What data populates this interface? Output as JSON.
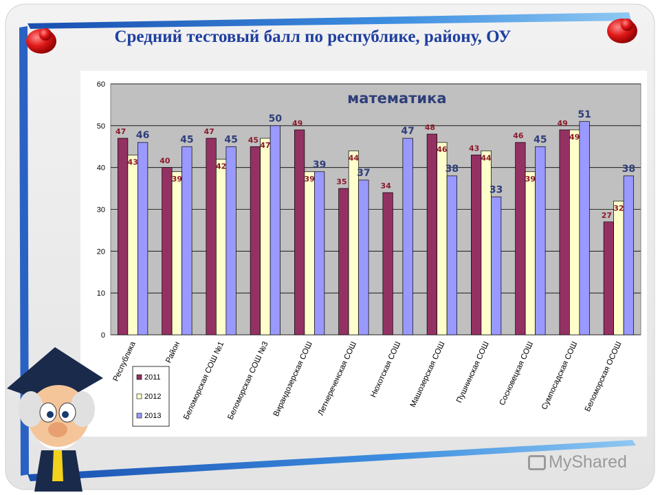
{
  "slide": {
    "title": "Средний тестовый балл по республике, району, ОУ",
    "watermark": "MyShared"
  },
  "colors": {
    "s2011": "#943163",
    "s2012": "#ffffcc",
    "s2013": "#9999ff",
    "plot_bg": "#c0c0c0",
    "label_dark_red": "#8b1a2b",
    "label_blue": "#2e3e7a"
  },
  "chart_data": {
    "type": "bar",
    "title": "математика",
    "categories": [
      "Республика",
      "Район",
      "Беломорская СОШ №1",
      "Беломорская СОШ №3",
      "Вирандозерская СОШ",
      "Летнереченская СОШ",
      "Нюхотская СОШ",
      "Машозерская СОШ",
      "Пушнинская СОШ",
      "Сосновецкая СОШ",
      "Сумпосадская СОШ",
      "Беломорская ОСОШ"
    ],
    "series": [
      {
        "name": "2011",
        "values": [
          47,
          40,
          47,
          45,
          49,
          35,
          34,
          48,
          43,
          46,
          49,
          27
        ]
      },
      {
        "name": "2012",
        "values": [
          43,
          39,
          42,
          47,
          39,
          44,
          null,
          46,
          44,
          39,
          49,
          32
        ]
      },
      {
        "name": "2013",
        "values": [
          46,
          45,
          45,
          50,
          39,
          37,
          47,
          38,
          33,
          45,
          51,
          38
        ]
      }
    ],
    "ylim": [
      0,
      60
    ],
    "yticks": [
      0,
      10,
      20,
      30,
      40,
      50,
      60
    ],
    "grid": true,
    "legend": "bottom-left"
  }
}
